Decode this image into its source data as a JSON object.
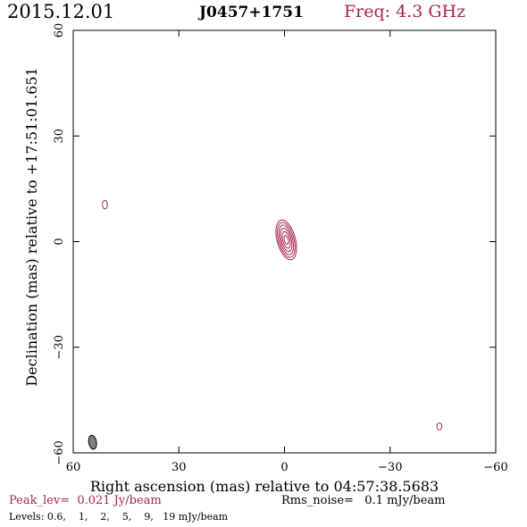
{
  "header": {
    "date": "2015.12.01",
    "source": "J0457+1751",
    "freq": "Freq: 4.3 GHz"
  },
  "footer": {
    "peak": "Peak_lev=  0.021 Jy/beam",
    "rms": "Rms_noise=   0.1 mJy/beam",
    "levels": "Levels: 0.6,    1,    2,    5,    9,   19 mJy/beam"
  },
  "colors": {
    "accent": "#a8244c",
    "axis": "#000000",
    "beam_fill": "#808080"
  },
  "chart_data": {
    "type": "contour",
    "xlabel": "Right ascension (mas) relative to 04:57:38.5683",
    "ylabel": "Declination (mas) relative to +17:51:01.651",
    "xlim": [
      60,
      -60
    ],
    "ylim": [
      -60,
      60
    ],
    "xticks": [
      60,
      30,
      0,
      -30,
      -60
    ],
    "yticks": [
      60,
      30,
      0,
      -30,
      -60
    ],
    "xtick_labels": [
      "60",
      "30",
      "0",
      "−30",
      "−60"
    ],
    "ytick_labels": [
      "60",
      "30",
      "0",
      "−30",
      "−60"
    ],
    "levels_mjy": [
      0.6,
      1,
      2,
      5,
      9,
      19
    ],
    "peak_jy_per_beam": 0.021,
    "rms_mjy_per_beam": 0.1,
    "components": [
      {
        "name": "core",
        "center": [
          -0.5,
          0.5
        ],
        "rotation_deg": -15,
        "contours": [
          {
            "level": 0.6,
            "ra": 2.6,
            "rdec": 5.8
          },
          {
            "level": 1,
            "ra": 2.2,
            "rdec": 5.1
          },
          {
            "level": 2,
            "ra": 1.8,
            "rdec": 4.3
          },
          {
            "level": 5,
            "ra": 1.4,
            "rdec": 3.4
          },
          {
            "level": 9,
            "ra": 1.0,
            "rdec": 2.4
          },
          {
            "level": 19,
            "ra": 0.55,
            "rdec": 1.3
          }
        ]
      },
      {
        "name": "blob-left",
        "center": [
          51,
          10.5
        ],
        "rotation_deg": 0,
        "contours": [
          {
            "level": 0.6,
            "ra": 0.7,
            "rdec": 1.2
          }
        ]
      },
      {
        "name": "blob-right",
        "center": [
          -44,
          -52.5
        ],
        "rotation_deg": 0,
        "contours": [
          {
            "level": 0.6,
            "ra": 0.7,
            "rdec": 1.0
          }
        ]
      }
    ],
    "beam": {
      "center": [
        54.5,
        -57
      ],
      "major_mas": 4,
      "minor_mas": 2.2,
      "pa_deg": -10
    }
  }
}
